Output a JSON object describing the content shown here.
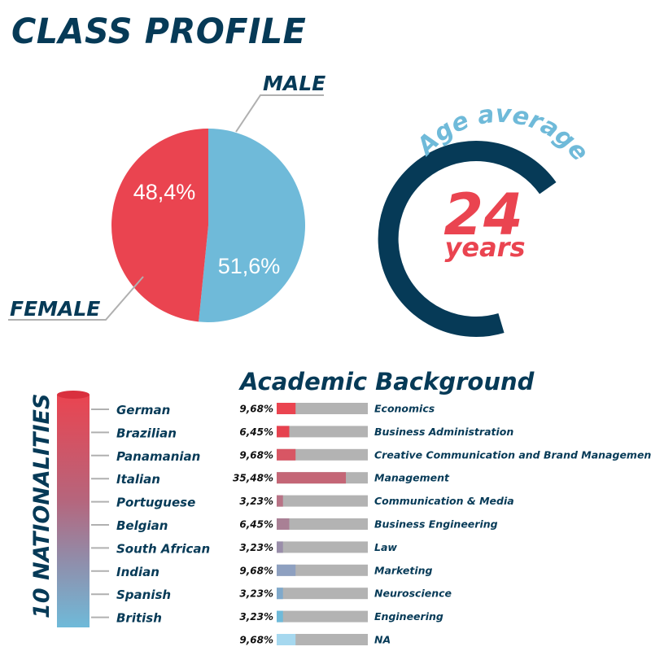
{
  "title": "CLASS PROFILE",
  "gender": {
    "male_label": "MALE",
    "female_label": "FEMALE",
    "female_pct": "48,4%",
    "male_pct": "51,6%"
  },
  "age": {
    "label": "Age average",
    "value": "24",
    "unit": "years"
  },
  "nationalities": {
    "title": "10 NATIONALITIES",
    "items": [
      "German",
      "Brazilian",
      "Panamanian",
      "Italian",
      "Portuguese",
      "Belgian",
      "South African",
      "Indian",
      "Spanish",
      "British"
    ]
  },
  "academic": {
    "title": "Academic Background",
    "rows": [
      {
        "pct": "9,68%",
        "name": "Economics"
      },
      {
        "pct": "6,45%",
        "name": "Business Administration"
      },
      {
        "pct": "9,68%",
        "name": "Creative Communication and Brand Management"
      },
      {
        "pct": "35,48%",
        "name": "Management"
      },
      {
        "pct": "3,23%",
        "name": "Communication & Media"
      },
      {
        "pct": "6,45%",
        "name": "Business Engineering"
      },
      {
        "pct": "3,23%",
        "name": "Law"
      },
      {
        "pct": "9,68%",
        "name": "Marketing"
      },
      {
        "pct": "3,23%",
        "name": "Neuroscience"
      },
      {
        "pct": "3,23%",
        "name": "Engineering"
      },
      {
        "pct": "9,68%",
        "name": "NA"
      }
    ]
  },
  "colors": {
    "navy": "#063a57",
    "red": "#ea4450",
    "blue": "#6fbad9",
    "bar_track": "#b3b3b3",
    "leader_line": "#b0b0b0"
  },
  "chart_data": [
    {
      "type": "pie",
      "title": "",
      "labels": [
        "FEMALE",
        "MALE"
      ],
      "values": [
        48.4,
        51.6
      ]
    },
    {
      "type": "bar",
      "title": "Academic Background",
      "categories": [
        "Economics",
        "Business Administration",
        "Creative Communication and Brand Management",
        "Management",
        "Communication & Media",
        "Business Engineering",
        "Law",
        "Marketing",
        "Neuroscience",
        "Engineering",
        "NA"
      ],
      "values": [
        9.68,
        6.45,
        9.68,
        35.48,
        3.23,
        6.45,
        3.23,
        9.68,
        3.23,
        3.23,
        9.68
      ],
      "xlabel": "",
      "ylabel": "",
      "ylim": [
        0,
        100
      ]
    }
  ]
}
